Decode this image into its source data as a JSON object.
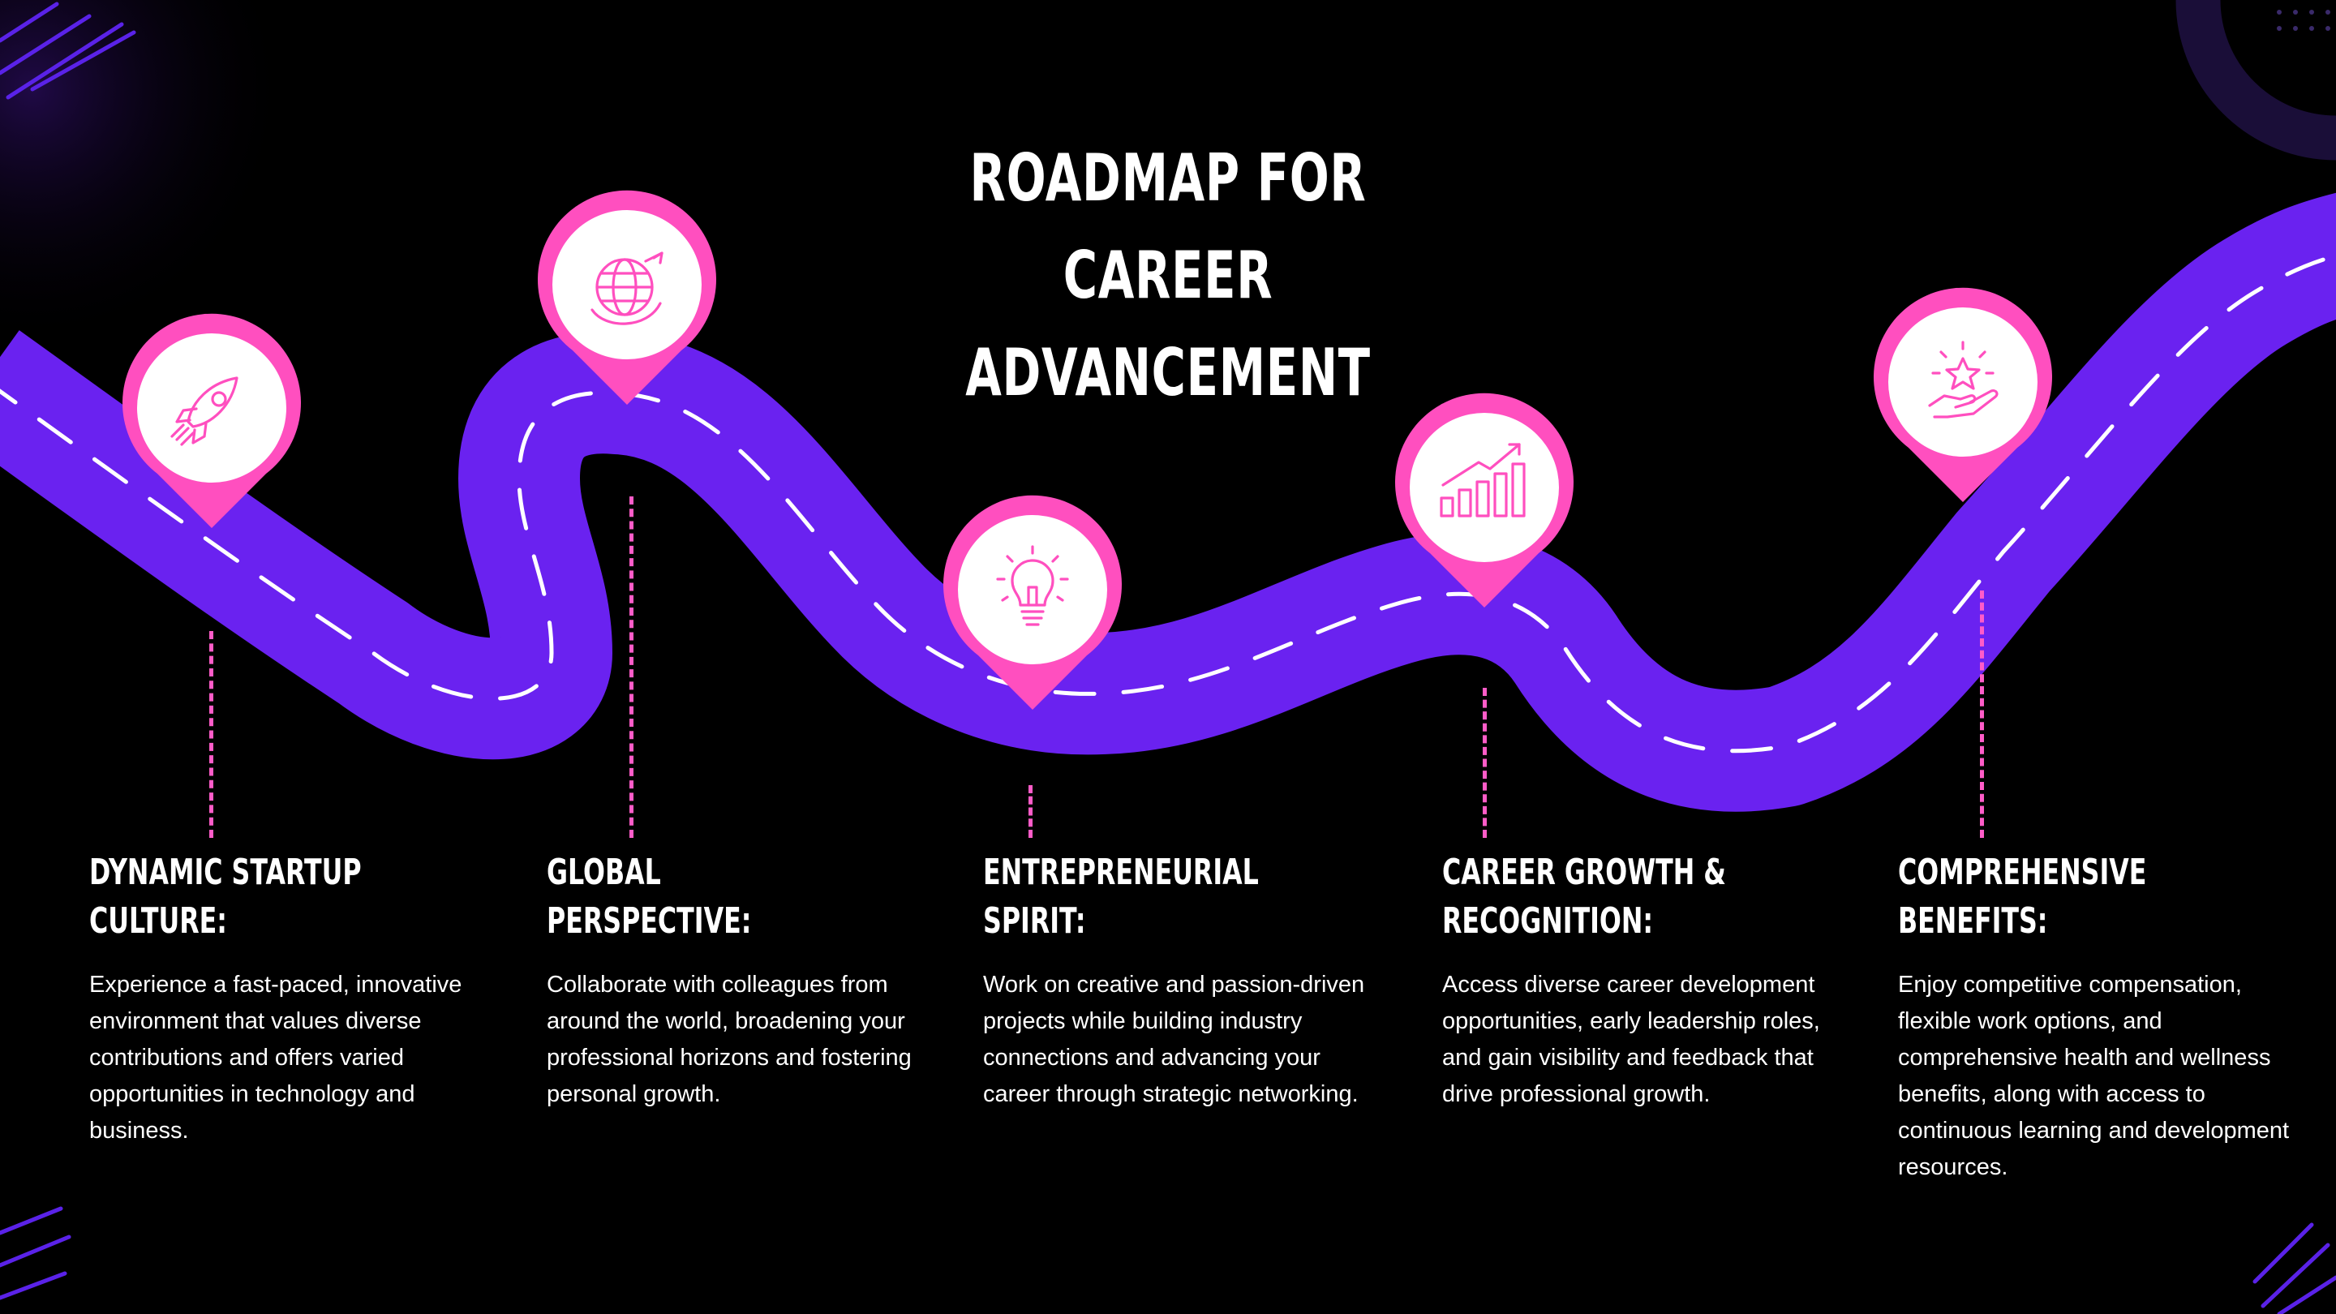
{
  "title_line1": "ROADMAP FOR CAREER",
  "title_line2": "ADVANCEMENT",
  "colors": {
    "background": "#000000",
    "road": "#6a22f0",
    "pin": "#ff4fbf",
    "dashes": "#ff5cc8"
  },
  "milestones": [
    {
      "icon": "rocket-icon",
      "title1": "DYNAMIC STARTUP",
      "title2": "CULTURE:",
      "description": "Experience a fast-paced, innovative environment that values diverse contributions and offers varied opportunities in technology and business."
    },
    {
      "icon": "globe-icon",
      "title1": "GLOBAL",
      "title2": "PERSPECTIVE:",
      "description": "Collaborate with colleagues from around the world, broadening your professional horizons and fostering personal growth."
    },
    {
      "icon": "lightbulb-icon",
      "title1": "ENTREPRENEURIAL",
      "title2": "SPIRIT:",
      "description": "Work on creative and passion-driven projects while building industry connections and advancing your career through strategic networking."
    },
    {
      "icon": "growth-chart-icon",
      "title1": "CAREER GROWTH &",
      "title2": "RECOGNITION:",
      "description": "Access diverse career development opportunities, early leadership roles, and gain visibility and feedback that drive professional growth."
    },
    {
      "icon": "star-hand-icon",
      "title1": "COMPREHENSIVE",
      "title2": "BENEFITS:",
      "description": "Enjoy competitive compensation, flexible work options, and comprehensive health and wellness benefits, along with access to continuous learning and development resources."
    }
  ]
}
